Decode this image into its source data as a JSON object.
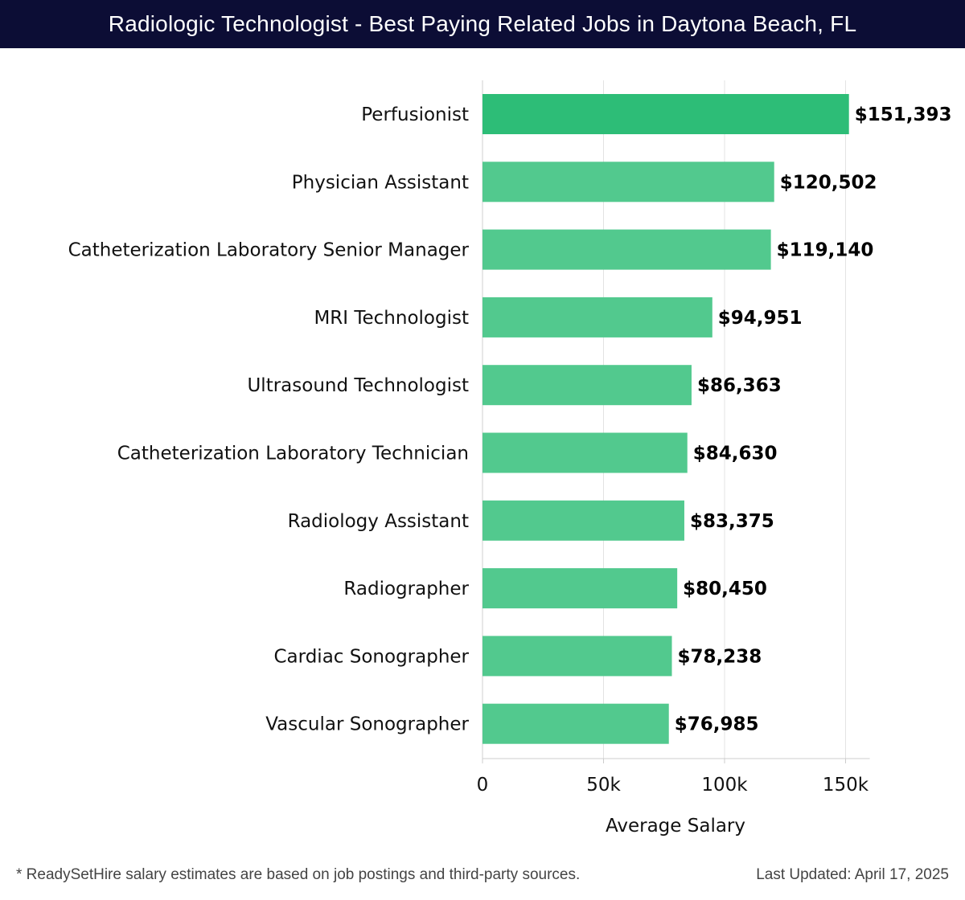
{
  "header": {
    "title": "Radiologic Technologist - Best Paying Related Jobs in Daytona Beach, FL"
  },
  "chart_data": {
    "type": "bar",
    "orientation": "horizontal",
    "categories": [
      "Perfusionist",
      "Physician Assistant",
      "Catheterization Laboratory Senior Manager",
      "MRI Technologist",
      "Ultrasound Technologist",
      "Catheterization Laboratory Technician",
      "Radiology Assistant",
      "Radiographer",
      "Cardiac Sonographer",
      "Vascular Sonographer"
    ],
    "values": [
      151393,
      120502,
      119140,
      94951,
      86363,
      84630,
      83375,
      80450,
      78238,
      76985
    ],
    "value_labels": [
      "$151,393",
      "$120,502",
      "$119,140",
      "$94,951",
      "$86,363",
      "$84,630",
      "$83,375",
      "$80,450",
      "$78,238",
      "$76,985"
    ],
    "xlabel": "Average Salary",
    "xlim": [
      0,
      160000
    ],
    "ticks": [
      0,
      50000,
      100000,
      150000
    ],
    "tick_labels": [
      "0",
      "50k",
      "100k",
      "150k"
    ],
    "grid": "vertical",
    "colors": {
      "top_bar": "#2dbd77",
      "bar": "#52c98e"
    }
  },
  "footer": {
    "note": "* ReadySetHire salary estimates are based on job postings and third-party sources.",
    "updated": "Last Updated: April 17, 2025"
  }
}
